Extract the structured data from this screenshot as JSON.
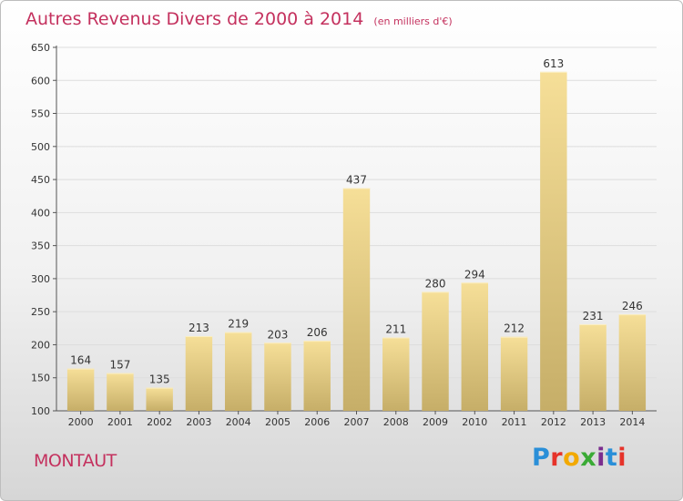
{
  "title": "Autres Revenus Divers de 2000 à 2014",
  "subtitle": "(en milliers d'€)",
  "location": "MONTAUT",
  "brand": {
    "text": "Proxiti",
    "letter_colors": [
      "#2a8fd8",
      "#e6332a",
      "#f2a900",
      "#3aaa35",
      "#7b2d8e",
      "#2a8fd8",
      "#e6332a"
    ]
  },
  "colors": {
    "title": "#c4315e",
    "bar_light": "#f6df98",
    "bar_dark": "#c6ae68",
    "axis": "#555555",
    "grid": "#dddddd"
  },
  "chart_data": {
    "type": "bar",
    "categories": [
      "2000",
      "2001",
      "2002",
      "2003",
      "2004",
      "2005",
      "2006",
      "2007",
      "2008",
      "2009",
      "2010",
      "2011",
      "2012",
      "2013",
      "2014"
    ],
    "values": [
      164,
      157,
      135,
      213,
      219,
      203,
      206,
      437,
      211,
      280,
      294,
      212,
      613,
      231,
      246
    ],
    "title": "Autres Revenus Divers de 2000 à 2014",
    "xlabel": "",
    "ylabel": "",
    "ylim": [
      100,
      650
    ],
    "yticks": [
      100,
      150,
      200,
      250,
      300,
      350,
      400,
      450,
      500,
      550,
      600,
      650
    ],
    "grid": true,
    "data_labels": true
  }
}
